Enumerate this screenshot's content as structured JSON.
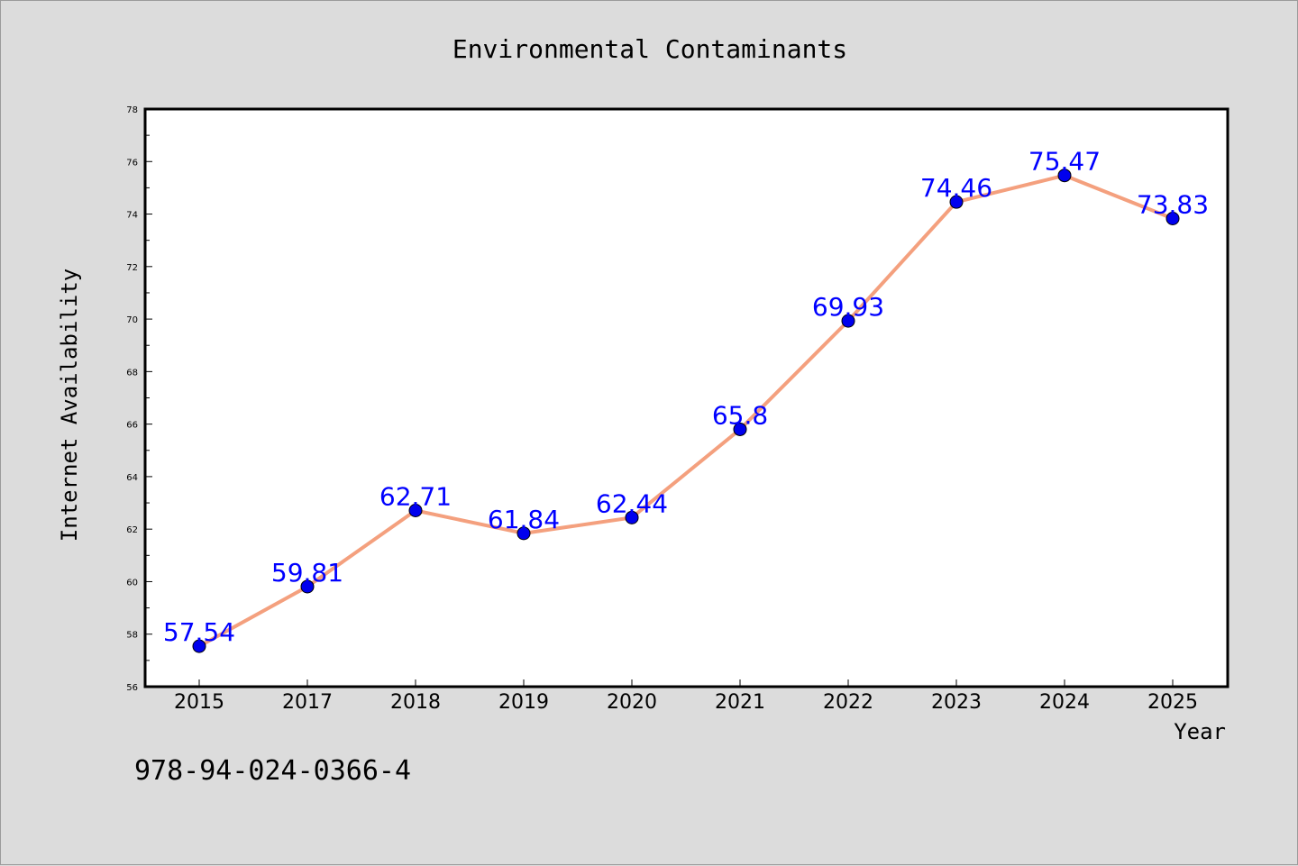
{
  "chart_data": {
    "type": "line",
    "title": "Environmental Contaminants",
    "xlabel": "Year",
    "ylabel": "Internet Availability",
    "categories": [
      "2015",
      "2017",
      "2018",
      "2019",
      "2020",
      "2021",
      "2022",
      "2023",
      "2024",
      "2025"
    ],
    "series": [
      {
        "values": [
          57.54,
          59.81,
          62.71,
          61.84,
          62.44,
          65.8,
          69.93,
          74.46,
          75.47,
          73.83
        ],
        "data_labels": [
          "57.54",
          "59.81",
          "62.71",
          "61.84",
          "62.44",
          "65.8",
          "69.93",
          "74.46",
          "75.47",
          "73.83"
        ],
        "line_color": "#f4a07e",
        "marker_color": "#0000ee",
        "label_color": "#0000ff"
      }
    ],
    "ylim": [
      56,
      78
    ],
    "yticks": [
      "56",
      "58",
      "60",
      "62",
      "64",
      "66",
      "68",
      "70",
      "72",
      "74",
      "76",
      "78"
    ],
    "grid": false,
    "legend": "none"
  },
  "footer": {
    "isbn": "978-94-024-0366-4"
  },
  "colors": {
    "background": "#dcdcdc",
    "plot_background": "#ffffff",
    "axis": "#000000"
  }
}
